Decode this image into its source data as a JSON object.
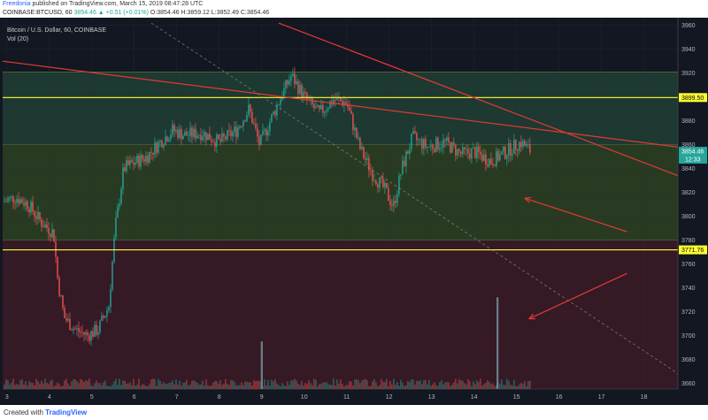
{
  "header": {
    "author": "Freedonia",
    "published": "published on TradingView.com, March 15, 2019 08:47:28 UTC",
    "symbol": "COINBASE:BTCUSD, 60",
    "ohlc": "O:3854.46  H:3859.12  L:3852.49  C:3854.46",
    "change": "3854.46 ▲ +0.51 (+0.01%)"
  },
  "legend": {
    "title": "Bitcoin / U.S. Dollar, 60, COINBASE",
    "volume": "Vol (20)"
  },
  "footer": {
    "created_with": "Created with",
    "brand": "TradingView"
  },
  "colors": {
    "up": "#26a69a",
    "down": "#ef5350",
    "zone_upper": "#1f3d33",
    "zone_middle": "#2b3f22",
    "zone_lower": "#3a1a26",
    "background": "#131722",
    "level_line": "#ffff33",
    "trend_line": "#e53935",
    "tick_text": "#b2b5be"
  },
  "chart_data": {
    "type": "candlestick",
    "title": "Bitcoin / U.S. Dollar, 60, COINBASE",
    "ylim": [
      3655,
      3965
    ],
    "y_ticks": [
      3660,
      3680,
      3700,
      3720,
      3740,
      3760,
      3780,
      3800,
      3820,
      3840,
      3860,
      3880,
      3900,
      3920,
      3940,
      3960
    ],
    "x_ticks": [
      {
        "label": "3",
        "day": 3
      },
      {
        "label": "4",
        "day": 4
      },
      {
        "label": "5",
        "day": 5
      },
      {
        "label": "6",
        "day": 6
      },
      {
        "label": "7",
        "day": 7
      },
      {
        "label": "8",
        "day": 8
      },
      {
        "label": "9",
        "day": 9
      },
      {
        "label": "10",
        "day": 10
      },
      {
        "label": "11",
        "day": 11
      },
      {
        "label": "12",
        "day": 12
      },
      {
        "label": "13",
        "day": 13
      },
      {
        "label": "14",
        "day": 14
      },
      {
        "label": "15",
        "day": 15
      },
      {
        "label": "16",
        "day": 16
      },
      {
        "label": "17",
        "day": 17
      },
      {
        "label": "18",
        "day": 18
      }
    ],
    "x_range_days": [
      2.9,
      18.8
    ],
    "zones": [
      {
        "from": 3860,
        "to": 3921,
        "color": "upper"
      },
      {
        "from": 3780,
        "to": 3860,
        "color": "middle"
      },
      {
        "from": 3655,
        "to": 3780,
        "color": "lower"
      }
    ],
    "levels": [
      {
        "price": 3899.5,
        "label": "3899.50"
      },
      {
        "price": 3771.76,
        "label": "3771.76"
      }
    ],
    "price_tag": {
      "price": 3854.46,
      "label": "3854.46",
      "countdown": "12:33"
    },
    "trend_lines": [
      {
        "from": [
          2.9,
          3930
        ],
        "to": [
          18.8,
          3858
        ]
      },
      {
        "from": [
          9.4,
          3962
        ],
        "to": [
          18.8,
          3834
        ]
      }
    ],
    "dashed_line": {
      "from": [
        6.4,
        3962
      ],
      "to": [
        18.8,
        3668
      ]
    },
    "arrows": [
      {
        "from": [
          17.6,
          3787
        ],
        "to": [
          15.2,
          3815
        ]
      },
      {
        "from": [
          17.6,
          3752
        ],
        "to": [
          15.3,
          3714
        ]
      }
    ],
    "close_path": [
      [
        2.9,
        3812
      ],
      [
        3.2,
        3816
      ],
      [
        3.5,
        3810
      ],
      [
        3.8,
        3795
      ],
      [
        4.1,
        3786
      ],
      [
        4.2,
        3745
      ],
      [
        4.35,
        3715
      ],
      [
        4.6,
        3705
      ],
      [
        4.9,
        3700
      ],
      [
        5.15,
        3705
      ],
      [
        5.4,
        3725
      ],
      [
        5.55,
        3790
      ],
      [
        5.75,
        3840
      ],
      [
        6.0,
        3845
      ],
      [
        6.3,
        3850
      ],
      [
        6.6,
        3862
      ],
      [
        6.9,
        3872
      ],
      [
        7.2,
        3868
      ],
      [
        7.6,
        3870
      ],
      [
        8.0,
        3862
      ],
      [
        8.4,
        3872
      ],
      [
        8.7,
        3890
      ],
      [
        8.95,
        3860
      ],
      [
        9.2,
        3880
      ],
      [
        9.45,
        3900
      ],
      [
        9.7,
        3918
      ],
      [
        10.0,
        3900
      ],
      [
        10.35,
        3886
      ],
      [
        10.7,
        3898
      ],
      [
        11.0,
        3895
      ],
      [
        11.3,
        3858
      ],
      [
        11.6,
        3836
      ],
      [
        11.9,
        3822
      ],
      [
        12.1,
        3808
      ],
      [
        12.3,
        3840
      ],
      [
        12.55,
        3866
      ],
      [
        12.9,
        3858
      ],
      [
        13.3,
        3862
      ],
      [
        13.7,
        3852
      ],
      [
        14.0,
        3854
      ],
      [
        14.4,
        3846
      ],
      [
        14.8,
        3855
      ],
      [
        15.1,
        3862
      ],
      [
        15.35,
        3854
      ]
    ],
    "volume_spike": {
      "day": 14.55,
      "value": 3732
    },
    "volume_spike_2": {
      "day": 9.0,
      "value": 3695
    }
  }
}
